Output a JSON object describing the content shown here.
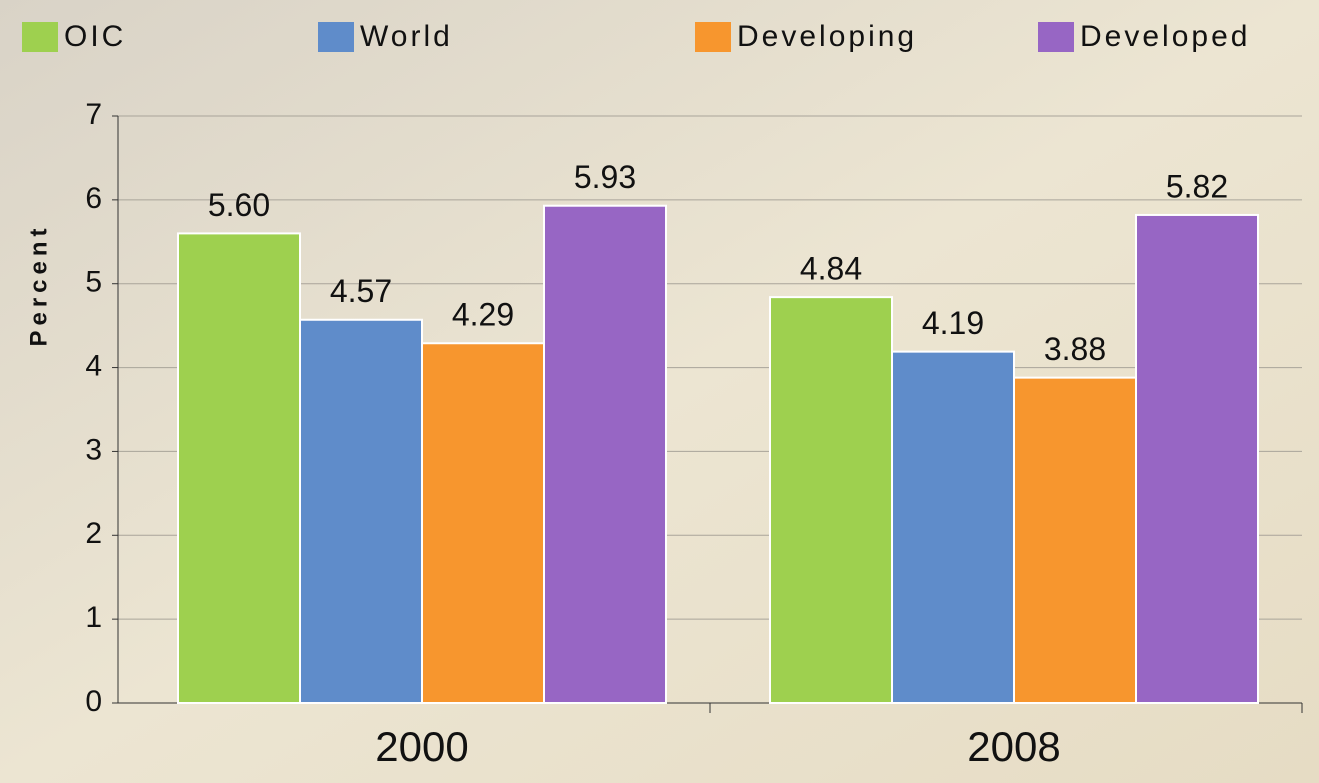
{
  "chart_data": {
    "type": "bar",
    "y_label": "Percent",
    "categories": [
      "2000",
      "2008"
    ],
    "series": [
      {
        "name": "OIC",
        "color": "#9ed04f",
        "values": [
          5.6,
          4.84
        ],
        "value_labels": [
          "5.60",
          "4.84"
        ]
      },
      {
        "name": "World",
        "color": "#5f8cca",
        "values": [
          4.57,
          4.19
        ]
      },
      {
        "name": "Developing",
        "color": "#f7962e",
        "values": [
          4.29,
          3.88
        ]
      },
      {
        "name": "Developed",
        "color": "#9766c4",
        "values": [
          5.93,
          5.82
        ]
      }
    ],
    "ylim": [
      0,
      7
    ],
    "yticks": [
      0,
      1,
      2,
      3,
      4,
      5,
      6,
      7
    ],
    "grid": true
  }
}
